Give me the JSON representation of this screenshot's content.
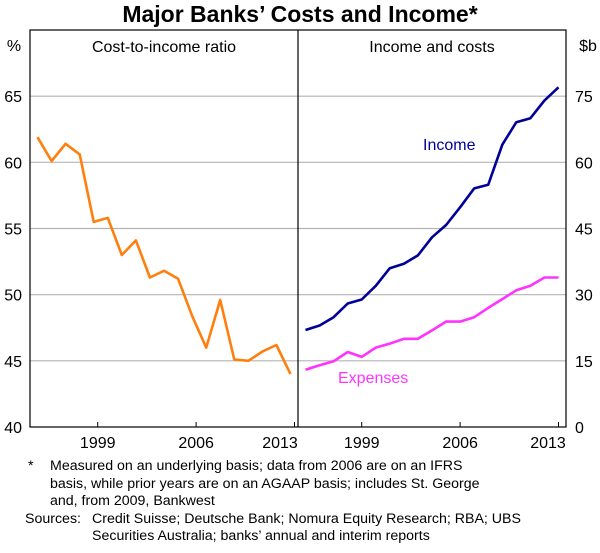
{
  "chart_data": [
    {
      "type": "line",
      "title": "Cost-to-income ratio",
      "ylabel": "%",
      "ylim": [
        40,
        70
      ],
      "yticks": [
        40,
        45,
        50,
        55,
        60,
        65
      ],
      "x": [
        1995,
        1996,
        1997,
        1998,
        1999,
        2000,
        2001,
        2002,
        2003,
        2004,
        2005,
        2006,
        2007,
        2008,
        2009,
        2010,
        2011,
        2012,
        2013
      ],
      "xticks": [
        "1999",
        "2006",
        "2013"
      ],
      "grid": true,
      "series": [
        {
          "name": "Cost-to-income ratio",
          "color": "#ff7f0e",
          "values": [
            61.9,
            60.1,
            61.4,
            60.6,
            55.5,
            55.8,
            53.0,
            54.1,
            51.3,
            51.8,
            51.2,
            48.4,
            46.0,
            49.6,
            45.1,
            45.0,
            45.7,
            46.2,
            44.0
          ]
        }
      ]
    },
    {
      "type": "line",
      "title": "Income and costs",
      "ylabel": "$b",
      "ylim": [
        0,
        90
      ],
      "yticks": [
        0,
        15,
        30,
        45,
        60,
        75
      ],
      "x": [
        1995,
        1996,
        1997,
        1998,
        1999,
        2000,
        2001,
        2002,
        2003,
        2004,
        2005,
        2006,
        2007,
        2008,
        2009,
        2010,
        2011,
        2012,
        2013
      ],
      "xticks": [
        "1999",
        "2006",
        "2013"
      ],
      "grid": true,
      "series": [
        {
          "name": "Income",
          "color": "#000099",
          "values": [
            22.0,
            23.0,
            24.9,
            28.0,
            28.9,
            32.0,
            36.0,
            37.0,
            38.9,
            43.0,
            45.8,
            49.8,
            54.1,
            54.9,
            64.0,
            69.1,
            70.0,
            74.0,
            77.0
          ]
        },
        {
          "name": "Expenses",
          "color": "#ff33ff",
          "values": [
            13.0,
            14.0,
            14.9,
            17.0,
            15.9,
            18.0,
            18.9,
            20.0,
            20.0,
            21.9,
            23.9,
            23.9,
            24.9,
            27.0,
            29.0,
            31.0,
            32.0,
            33.9,
            33.9
          ]
        }
      ]
    }
  ],
  "main_title": "Major Banks’ Costs and Income*",
  "notes": {
    "star": "*",
    "footnote": "Measured on an underlying basis; data from 2006 are on an IFRS basis, while prior years are on an AGAAP basis; includes St. George and, from 2009, Bankwest",
    "sources_label": "Sources:",
    "sources": "Credit Suisse; Deutsche Bank; Nomura Equity Research; RBA; UBS Securities Australia; banks’ annual and interim reports"
  }
}
